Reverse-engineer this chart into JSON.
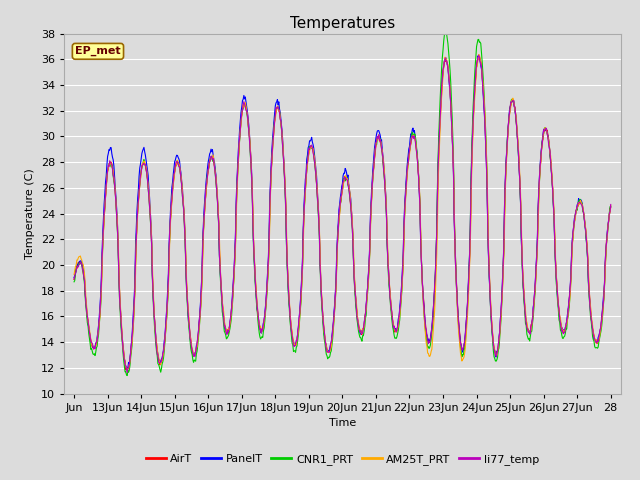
{
  "title": "Temperatures",
  "xlabel": "Time",
  "ylabel": "Temperature (C)",
  "ylim": [
    10,
    38
  ],
  "yticks": [
    10,
    12,
    14,
    16,
    18,
    20,
    22,
    24,
    26,
    28,
    30,
    32,
    34,
    36,
    38
  ],
  "xtick_labels": [
    "Jun",
    "13Jun",
    "14Jun",
    "15Jun",
    "16Jun",
    "17Jun",
    "18Jun",
    "19Jun",
    "20Jun",
    "21Jun",
    "22Jun",
    "23Jun",
    "24Jun",
    "25Jun",
    "26Jun",
    "27Jun",
    "28"
  ],
  "series_names": [
    "AirT",
    "PanelT",
    "CNR1_PRT",
    "AM25T_PRT",
    "li77_temp"
  ],
  "series_colors": [
    "#ff0000",
    "#0000ff",
    "#00cc00",
    "#ffaa00",
    "#bb00bb"
  ],
  "line_width": 0.8,
  "annotation_text": "EP_met",
  "annotation_bg": "#ffff99",
  "annotation_border": "#996600",
  "plot_bg": "#dcdcdc",
  "grid_color": "#ffffff",
  "title_fontsize": 11,
  "label_fontsize": 8,
  "tick_fontsize": 8
}
